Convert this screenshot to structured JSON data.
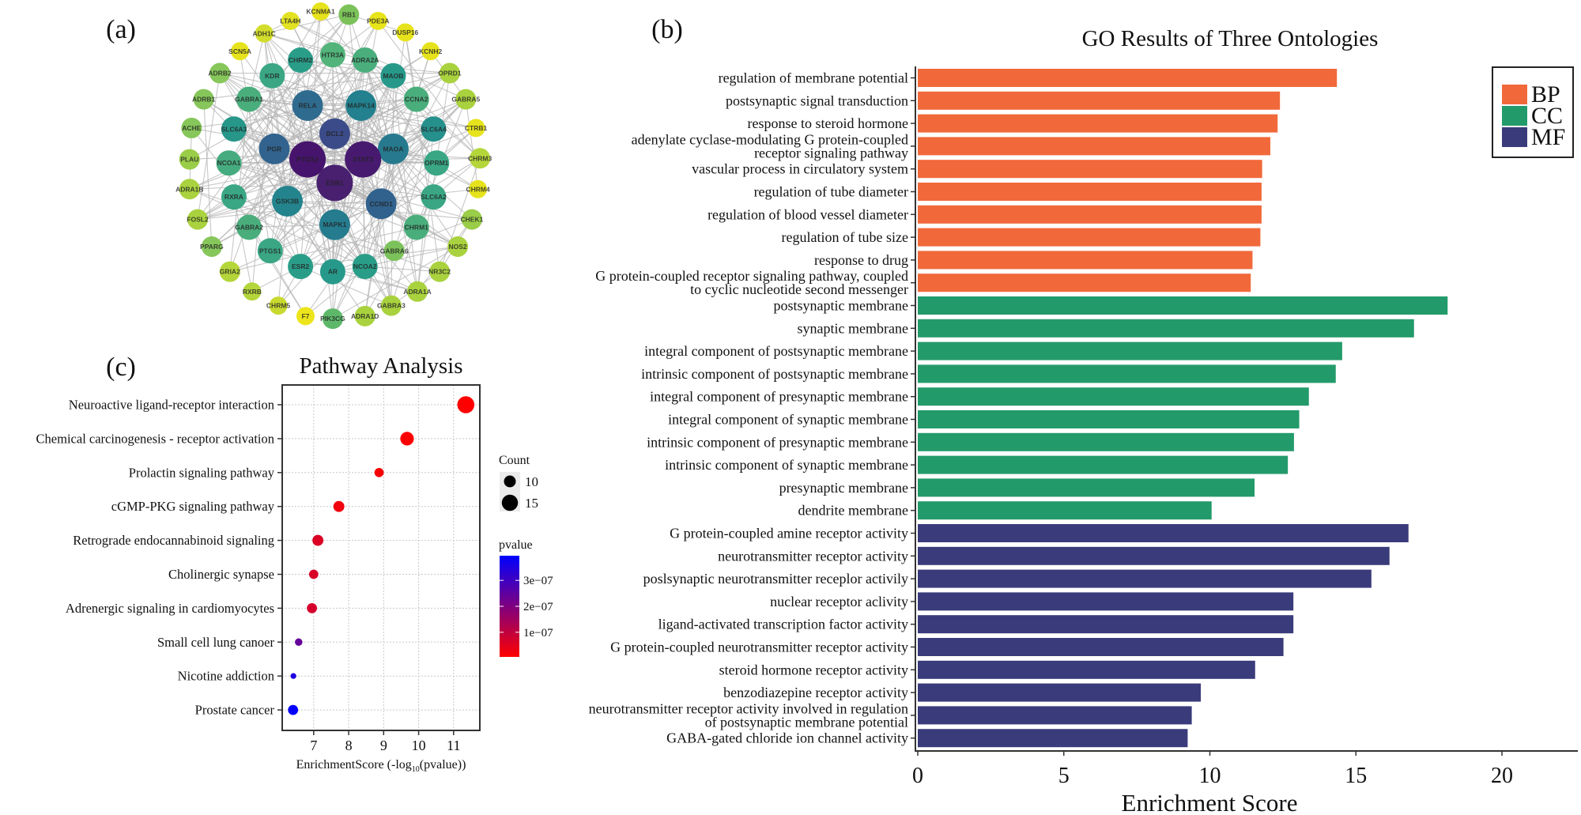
{
  "panels": {
    "a": "(a)",
    "b": "(b)",
    "c": "(c)"
  },
  "network": {
    "edge_color": "#b4b4b4",
    "nodes": [
      {
        "label": "RB1",
        "color": "#7cc25a"
      },
      {
        "label": "KCNMA1",
        "color": "#e6e31c"
      },
      {
        "label": "LTA4H",
        "color": "#e2e222"
      },
      {
        "label": "PDE3A",
        "color": "#e8e41a"
      },
      {
        "label": "ADH1C",
        "color": "#d2dd2c"
      },
      {
        "label": "DUSP16",
        "color": "#e6e31c"
      },
      {
        "label": "SCN5A",
        "color": "#e6e31c"
      },
      {
        "label": "KCNH2",
        "color": "#e6e31c"
      },
      {
        "label": "ADRB2",
        "color": "#86c65a"
      },
      {
        "label": "OPRD1",
        "color": "#a9d23e"
      },
      {
        "label": "ADRB1",
        "color": "#86c65a"
      },
      {
        "label": "GABRA5",
        "color": "#a9d23e"
      },
      {
        "label": "ACHE",
        "color": "#86c65a"
      },
      {
        "label": "CTRB1",
        "color": "#e6e31c"
      },
      {
        "label": "PLAU",
        "color": "#9acd48"
      },
      {
        "label": "CHRM3",
        "color": "#b5d63a"
      },
      {
        "label": "ADRA1B",
        "color": "#a9d23e"
      },
      {
        "label": "CHRM4",
        "color": "#e6e31c"
      },
      {
        "label": "FOSL2",
        "color": "#a9d23e"
      },
      {
        "label": "CHEK1",
        "color": "#9acd48"
      },
      {
        "label": "PPARG",
        "color": "#86c65a"
      },
      {
        "label": "NOS2",
        "color": "#a9d23e"
      },
      {
        "label": "GRIA2",
        "color": "#b5d63a"
      },
      {
        "label": "NR3C2",
        "color": "#a9d23e"
      },
      {
        "label": "RXRB",
        "color": "#b5d63a"
      },
      {
        "label": "ADRA1A",
        "color": "#a9d23e"
      },
      {
        "label": "CHRM5",
        "color": "#c8da30"
      },
      {
        "label": "GABRA3",
        "color": "#a9d23e"
      },
      {
        "label": "F7",
        "color": "#ece51b"
      },
      {
        "label": "PIK3CG",
        "color": "#5db86a"
      },
      {
        "label": "ADRA1D",
        "color": "#a9d23e"
      },
      {
        "label": "CHRM2",
        "color": "#2a9d88"
      },
      {
        "label": "HTR3A",
        "color": "#52b47a"
      },
      {
        "label": "ADRA2A",
        "color": "#4aae7c"
      },
      {
        "label": "KDR",
        "color": "#3aa684"
      },
      {
        "label": "MAOB",
        "color": "#27998a"
      },
      {
        "label": "GABRA1",
        "color": "#4aae7c"
      },
      {
        "label": "CCNA2",
        "color": "#4aae7c"
      },
      {
        "label": "SLC6A3",
        "color": "#27978a"
      },
      {
        "label": "SLC6A4",
        "color": "#25908c"
      },
      {
        "label": "NCOA1",
        "color": "#46ab7e"
      },
      {
        "label": "OPRM1",
        "color": "#3aa684"
      },
      {
        "label": "RXRA",
        "color": "#3aa684"
      },
      {
        "label": "SLC6A2",
        "color": "#3aa684"
      },
      {
        "label": "GABRA2",
        "color": "#4aae7c"
      },
      {
        "label": "CHRM1",
        "color": "#4aae7c"
      },
      {
        "label": "PTGS1",
        "color": "#3aa684"
      },
      {
        "label": "GABRA6",
        "color": "#7cc25a"
      },
      {
        "label": "ESR2",
        "color": "#2a9d88"
      },
      {
        "label": "AR",
        "color": "#27998a"
      },
      {
        "label": "NCOA2",
        "color": "#2a9d88"
      },
      {
        "label": "RELA",
        "color": "#2f6b8e"
      },
      {
        "label": "MAPK14",
        "color": "#23808e"
      },
      {
        "label": "BCL2",
        "color": "#3b4b89"
      },
      {
        "label": "PGR",
        "color": "#31638e"
      },
      {
        "label": "MAOA",
        "color": "#277a8e"
      },
      {
        "label": "PTGS2",
        "color": "#46146c"
      },
      {
        "label": "STAT3",
        "color": "#471a6f"
      },
      {
        "label": "ESR1",
        "color": "#48206f"
      },
      {
        "label": "GSK3B",
        "color": "#24848d"
      },
      {
        "label": "CCND1",
        "color": "#31628d"
      },
      {
        "label": "MAPK1",
        "color": "#257c8e"
      }
    ]
  },
  "chart_data": [
    {
      "type": "bar",
      "orientation": "horizontal",
      "title": "GO Results of Three Ontologies",
      "xlabel": "Enrichment Score",
      "ylabel": "",
      "xlim": [
        0,
        22.7
      ],
      "xticks": [
        "0",
        "5",
        "10",
        "15",
        "20"
      ],
      "legend": {
        "position": "top-right",
        "entries": [
          {
            "name": "BP",
            "color": "#f1693a"
          },
          {
            "name": "CC",
            "color": "#239a6a"
          },
          {
            "name": "MF",
            "color": "#3a3b7b"
          }
        ]
      },
      "bars": [
        {
          "label": [
            "regulation of membrane potential"
          ],
          "value": 14.35,
          "group": "BP"
        },
        {
          "label": [
            "postsynaptic signal transduction"
          ],
          "value": 12.4,
          "group": "BP"
        },
        {
          "label": [
            "response to steroid hormone"
          ],
          "value": 12.32,
          "group": "BP"
        },
        {
          "label": [
            "adenylate cyclase-modulating G protein-coupled",
            "receptor signaling pathway"
          ],
          "value": 12.07,
          "group": "BP"
        },
        {
          "label": [
            "vascular process in circulatory system"
          ],
          "value": 11.79,
          "group": "BP"
        },
        {
          "label": [
            "regulation of tube diameter"
          ],
          "value": 11.77,
          "group": "BP"
        },
        {
          "label": [
            "regulation of blood vessel diameter"
          ],
          "value": 11.77,
          "group": "BP"
        },
        {
          "label": [
            "regulation of tube size"
          ],
          "value": 11.73,
          "group": "BP"
        },
        {
          "label": [
            "response to drug"
          ],
          "value": 11.46,
          "group": "BP"
        },
        {
          "label": [
            "G protein-coupled receptor signaling pathway, coupled",
            "to cyclic nucleotide second messenger"
          ],
          "value": 11.4,
          "group": "BP"
        },
        {
          "label": [
            "postsynaptic membrane"
          ],
          "value": 18.14,
          "group": "CC"
        },
        {
          "label": [
            "synaptic membrane"
          ],
          "value": 16.99,
          "group": "CC"
        },
        {
          "label": [
            "integral component of postsynaptic membrane"
          ],
          "value": 14.53,
          "group": "CC"
        },
        {
          "label": [
            "intrinsic component of postsynaptic membrane"
          ],
          "value": 14.31,
          "group": "CC"
        },
        {
          "label": [
            "integral component of presynaptic membrane"
          ],
          "value": 13.39,
          "group": "CC"
        },
        {
          "label": [
            "integral component of synaptic membrane"
          ],
          "value": 13.06,
          "group": "CC"
        },
        {
          "label": [
            "intrinsic component of presynaptic membrane"
          ],
          "value": 12.88,
          "group": "CC"
        },
        {
          "label": [
            "intrinsic component of synaptic membrane"
          ],
          "value": 12.67,
          "group": "CC"
        },
        {
          "label": [
            "presynaptic membrane"
          ],
          "value": 11.53,
          "group": "CC"
        },
        {
          "label": [
            "dendrite membrane"
          ],
          "value": 10.06,
          "group": "CC"
        },
        {
          "label": [
            "G protein-coupled amine receptor activity"
          ],
          "value": 16.8,
          "group": "MF"
        },
        {
          "label": [
            "neurotransmitter receptor activity"
          ],
          "value": 16.15,
          "group": "MF"
        },
        {
          "label": [
            "poslsynaptic neurotransmitter receplor activily"
          ],
          "value": 15.53,
          "group": "MF"
        },
        {
          "label": [
            "nuclear receptor aclivity"
          ],
          "value": 12.86,
          "group": "MF"
        },
        {
          "label": [
            "ligand-activated transcription factor activity"
          ],
          "value": 12.86,
          "group": "MF"
        },
        {
          "label": [
            "G protein-coupled neurotransmitter receptor activity"
          ],
          "value": 12.52,
          "group": "MF"
        },
        {
          "label": [
            "steroid hormone receptor activity"
          ],
          "value": 11.55,
          "group": "MF"
        },
        {
          "label": [
            "benzodiazepine receptor activity"
          ],
          "value": 9.69,
          "group": "MF"
        },
        {
          "label": [
            "neurotransmitter receptor activity involved in regulation",
            "of postsynaptic membrane potential"
          ],
          "value": 9.38,
          "group": "MF"
        },
        {
          "label": [
            "GABA-gated chloride ion channel activity"
          ],
          "value": 9.24,
          "group": "MF"
        }
      ]
    },
    {
      "type": "scatter",
      "title": "Pathway Analysis",
      "xlabel_main": "EnrichmentScore (-log",
      "xlabel_sub": "10",
      "xlabel_tail": "(pvalue))",
      "xlim": [
        6.1,
        11.75
      ],
      "xticks": [
        "7",
        "8",
        "9",
        "10",
        "11"
      ],
      "grid": true,
      "size_legend": {
        "title": "Count",
        "entries": [
          {
            "label": "10",
            "value": 10
          },
          {
            "label": "15",
            "value": 15
          }
        ]
      },
      "color_legend": {
        "title": "pvalue",
        "low_color": "#ff0000",
        "high_color": "#0000ff",
        "range": [
          5e-09,
          3.95e-07
        ],
        "ticks": [
          {
            "label": "3e−07",
            "value": 3e-07
          },
          {
            "label": "2e−07",
            "value": 2e-07
          },
          {
            "label": "1e−07",
            "value": 1e-07
          }
        ]
      },
      "points": [
        {
          "pathway": "Neuroactive ligand-receptor interaction",
          "x": 11.35,
          "count": 16,
          "pvalue": 5e-09
        },
        {
          "pathway": "Chemical carcinogenesis - receptor activation",
          "x": 9.67,
          "count": 12,
          "pvalue": 8e-09
        },
        {
          "pathway": "Prolactin signaling pathway",
          "x": 8.87,
          "count": 7,
          "pvalue": 1.5e-08
        },
        {
          "pathway": "cGMP-PKG signaling pathway",
          "x": 7.72,
          "count": 9,
          "pvalue": 2.5e-08
        },
        {
          "pathway": "Retrograde endocannabinoid signaling",
          "x": 7.12,
          "count": 9,
          "pvalue": 6e-08
        },
        {
          "pathway": "Cholinergic synapse",
          "x": 7.0,
          "count": 7,
          "pvalue": 6.5e-08
        },
        {
          "pathway": "Adrenergic signaling in cardiomyocytes",
          "x": 6.95,
          "count": 8,
          "pvalue": 7e-08
        },
        {
          "pathway": "Small cell lung canoer",
          "x": 6.57,
          "count": 5,
          "pvalue": 2.4e-07
        },
        {
          "pathway": "Nicotine addiction",
          "x": 6.42,
          "count": 3,
          "pvalue": 3.5e-07
        },
        {
          "pathway": "Prostate cancer",
          "x": 6.41,
          "count": 8,
          "pvalue": 3.9e-07
        }
      ]
    }
  ]
}
